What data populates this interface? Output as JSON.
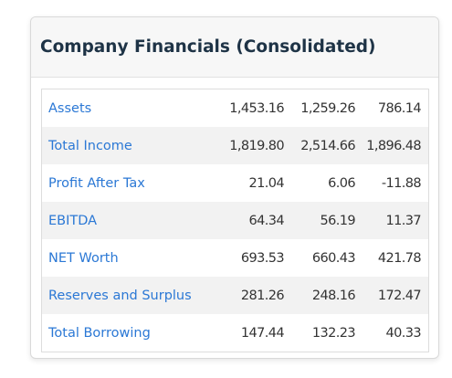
{
  "card": {
    "title": "Company Financials (Consolidated)"
  },
  "table": {
    "rows": [
      {
        "label": "Assets",
        "values": [
          "1,453.16",
          "1,259.26",
          "786.14"
        ]
      },
      {
        "label": "Total Income",
        "values": [
          "1,819.80",
          "2,514.66",
          "1,896.48"
        ]
      },
      {
        "label": "Profit After Tax",
        "values": [
          "21.04",
          "6.06",
          "-11.88"
        ]
      },
      {
        "label": "EBITDA",
        "values": [
          "64.34",
          "56.19",
          "11.37"
        ]
      },
      {
        "label": "NET Worth",
        "values": [
          "693.53",
          "660.43",
          "421.78"
        ]
      },
      {
        "label": "Reserves and Surplus",
        "values": [
          "281.26",
          "248.16",
          "172.47"
        ]
      },
      {
        "label": "Total Borrowing",
        "values": [
          "147.44",
          "132.23",
          "40.33"
        ]
      }
    ]
  },
  "colors": {
    "link": "#2b78d5",
    "title": "#1e3346",
    "stripe": "#f2f2f2"
  }
}
